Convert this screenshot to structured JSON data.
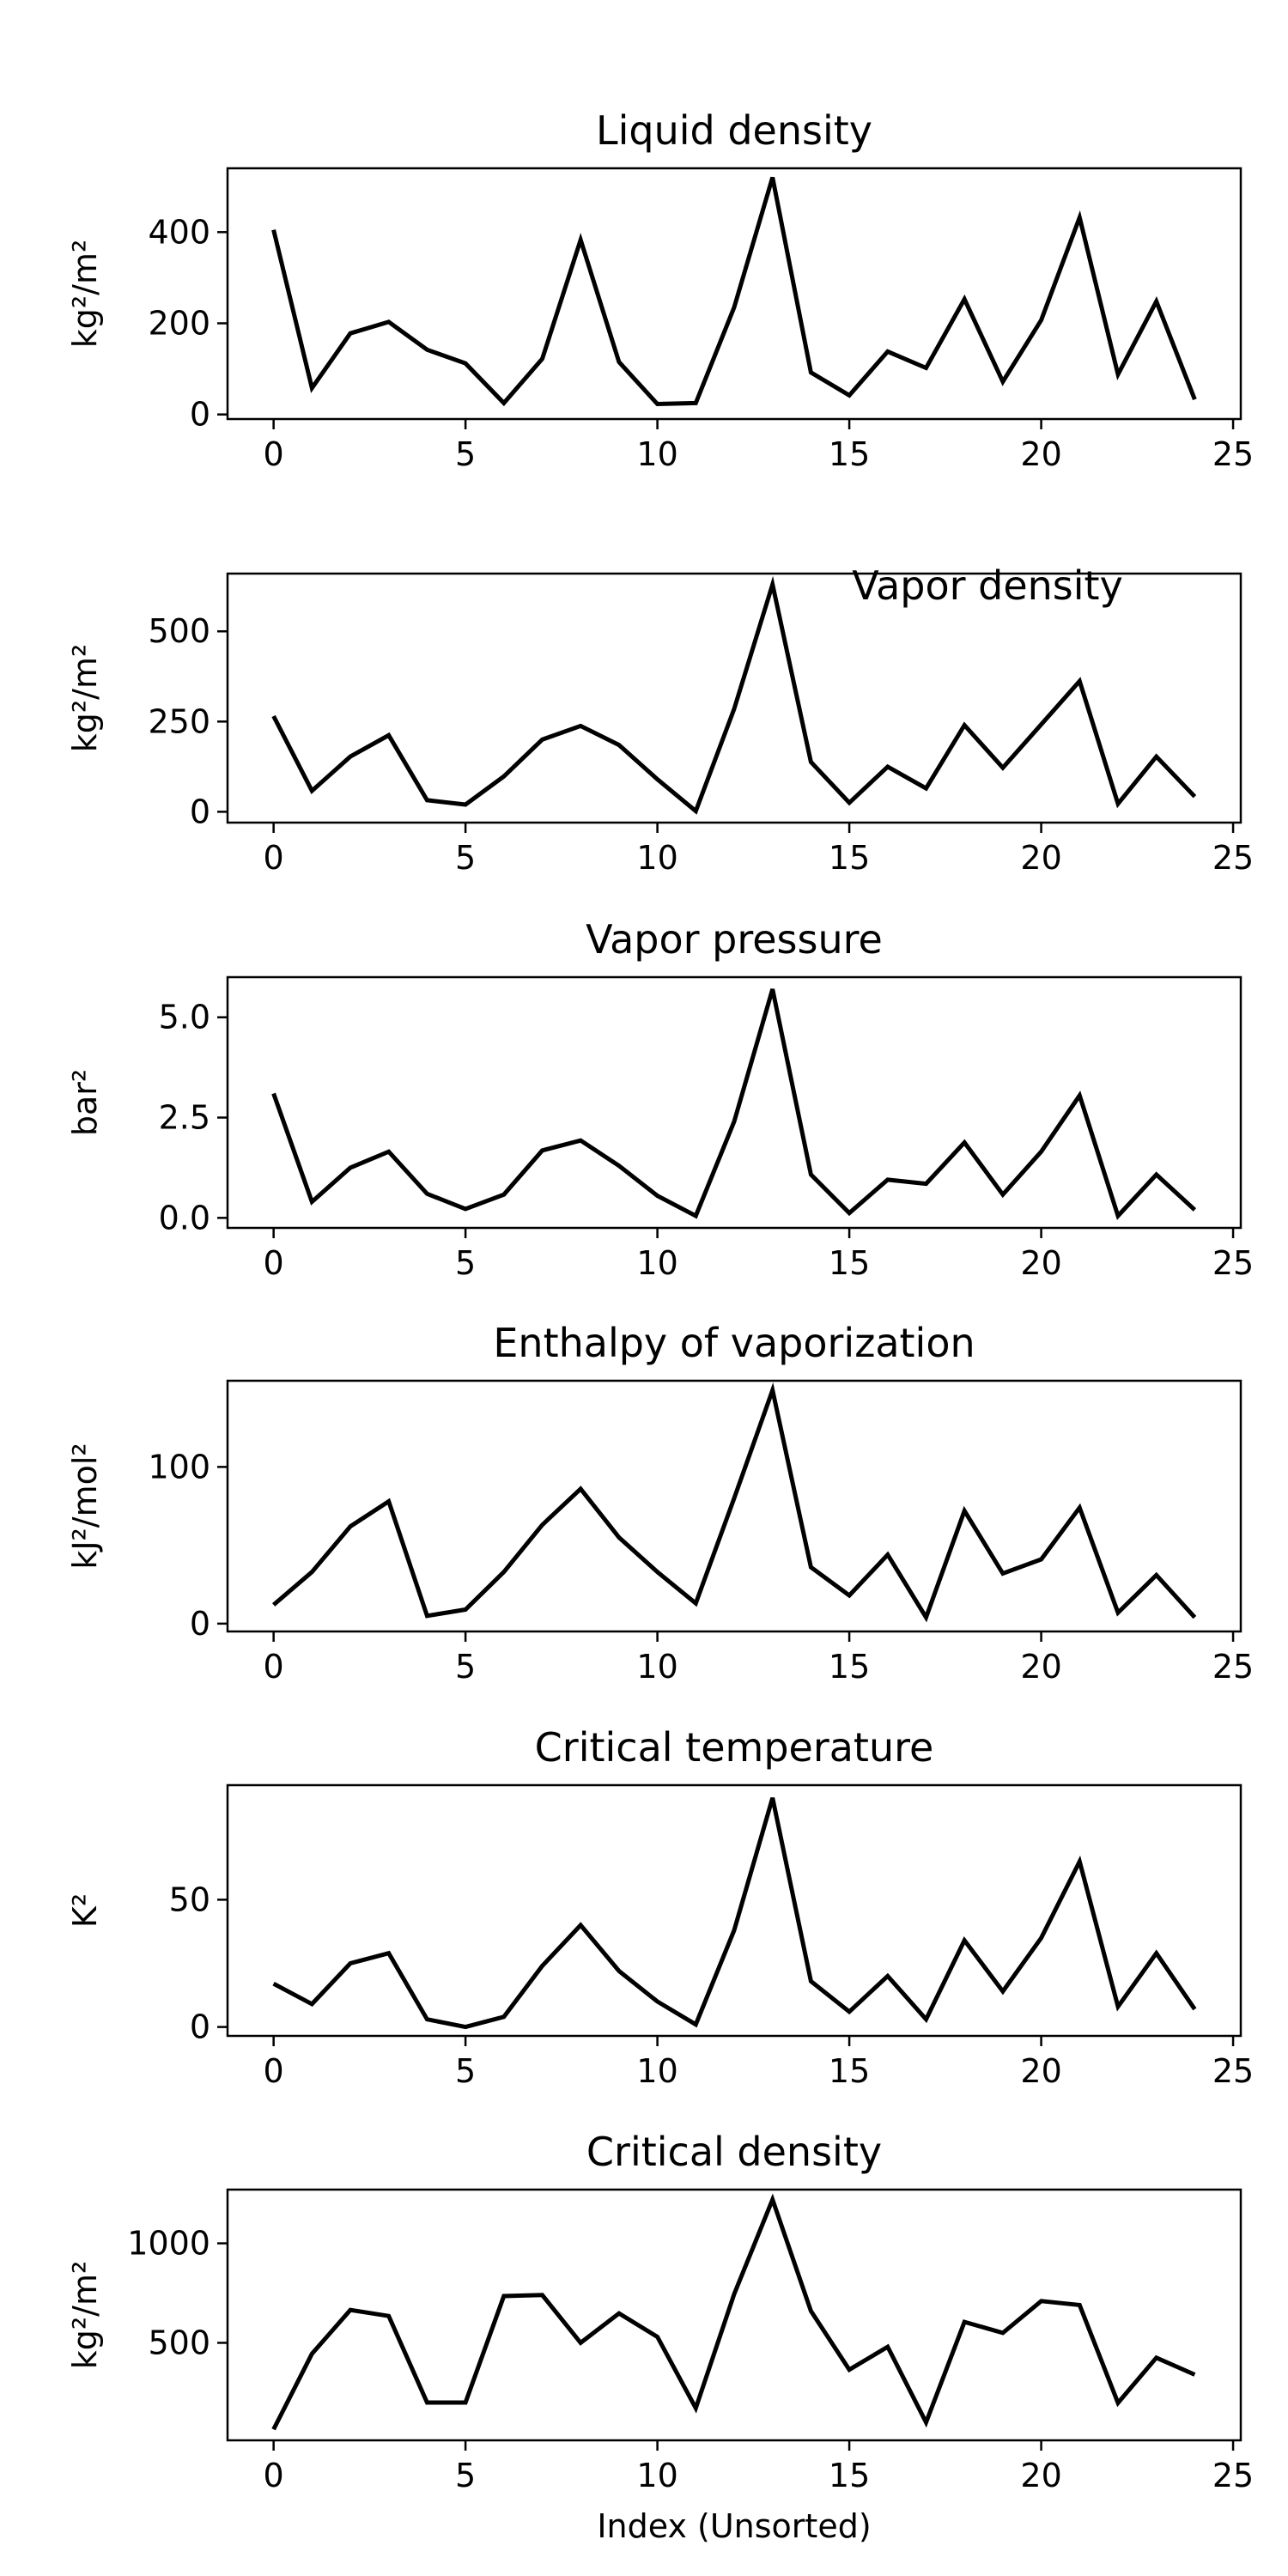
{
  "chart_data": [
    {
      "type": "line",
      "title": "Liquid density",
      "ylabel": "kg²/m²",
      "xlabel": "",
      "xlim": [
        -1.2,
        25.2
      ],
      "ylim": [
        -10,
        540
      ],
      "xticks": [
        0,
        5,
        10,
        15,
        20,
        25
      ],
      "yticks": [
        0,
        200,
        400
      ],
      "ytick_labels": [
        "0",
        "200",
        "400"
      ],
      "x": [
        0,
        1,
        2,
        3,
        4,
        5,
        6,
        7,
        8,
        9,
        10,
        11,
        12,
        13,
        14,
        15,
        16,
        17,
        18,
        19,
        20,
        21,
        22,
        23,
        24
      ],
      "values": [
        405,
        58,
        178,
        203,
        142,
        112,
        25,
        122,
        383,
        115,
        23,
        25,
        235,
        520,
        92,
        42,
        138,
        102,
        253,
        72,
        207,
        432,
        88,
        248,
        33
      ],
      "grid": false
    },
    {
      "type": "line",
      "title": "Vapor density",
      "ylabel": "kg²/m²",
      "xlabel": "",
      "xlim": [
        -1.2,
        25.2
      ],
      "ylim": [
        -30,
        660
      ],
      "xticks": [
        0,
        5,
        10,
        15,
        20,
        25
      ],
      "yticks": [
        0,
        250,
        500
      ],
      "ytick_labels": [
        "0",
        "250",
        "500"
      ],
      "x": [
        0,
        1,
        2,
        3,
        4,
        5,
        6,
        7,
        8,
        9,
        10,
        11,
        12,
        13,
        14,
        15,
        16,
        17,
        18,
        19,
        20,
        21,
        22,
        23,
        24
      ],
      "values": [
        265,
        58,
        153,
        212,
        32,
        20,
        98,
        200,
        238,
        185,
        90,
        2,
        285,
        630,
        138,
        25,
        125,
        65,
        240,
        122,
        242,
        362,
        22,
        153,
        42
      ],
      "grid": false
    },
    {
      "type": "line",
      "title": "Vapor pressure",
      "ylabel": "bar²",
      "xlabel": "",
      "xlim": [
        -1.2,
        25.2
      ],
      "ylim": [
        -0.25,
        6.0
      ],
      "xticks": [
        0,
        5,
        10,
        15,
        20,
        25
      ],
      "yticks": [
        0,
        2.5,
        5.0
      ],
      "ytick_labels": [
        "0.0",
        "2.5",
        "5.0"
      ],
      "x": [
        0,
        1,
        2,
        3,
        4,
        5,
        6,
        7,
        8,
        9,
        10,
        11,
        12,
        13,
        14,
        15,
        16,
        17,
        18,
        19,
        20,
        21,
        22,
        23,
        24
      ],
      "values": [
        3.1,
        0.4,
        1.25,
        1.65,
        0.6,
        0.22,
        0.58,
        1.68,
        1.93,
        1.3,
        0.55,
        0.05,
        2.4,
        5.7,
        1.08,
        0.12,
        0.95,
        0.85,
        1.88,
        0.58,
        1.65,
        3.05,
        0.05,
        1.08,
        0.2
      ],
      "grid": false
    },
    {
      "type": "line",
      "title": "Enthalpy of vaporization",
      "ylabel": "kJ²/mol²",
      "xlabel": "",
      "xlim": [
        -1.2,
        25.2
      ],
      "ylim": [
        -5,
        155
      ],
      "xticks": [
        0,
        5,
        10,
        15,
        20,
        25
      ],
      "yticks": [
        0,
        100
      ],
      "ytick_labels": [
        "0",
        "100"
      ],
      "x": [
        0,
        1,
        2,
        3,
        4,
        5,
        6,
        7,
        8,
        9,
        10,
        11,
        12,
        13,
        14,
        15,
        16,
        17,
        18,
        19,
        20,
        21,
        22,
        23,
        24
      ],
      "values": [
        12,
        33,
        62,
        78,
        5,
        9,
        33,
        63,
        86,
        55,
        33,
        13,
        80,
        149,
        36,
        18,
        44,
        4,
        72,
        32,
        41,
        74,
        7,
        31,
        4
      ],
      "grid": false
    },
    {
      "type": "line",
      "title": "Critical temperature",
      "ylabel": "K²",
      "xlabel": "",
      "xlim": [
        -1.2,
        25.2
      ],
      "ylim": [
        -3.5,
        95
      ],
      "xticks": [
        0,
        5,
        10,
        15,
        20,
        25
      ],
      "yticks": [
        0,
        50
      ],
      "ytick_labels": [
        "0",
        "50"
      ],
      "x": [
        0,
        1,
        2,
        3,
        4,
        5,
        6,
        7,
        8,
        9,
        10,
        11,
        12,
        13,
        14,
        15,
        16,
        17,
        18,
        19,
        20,
        21,
        22,
        23,
        24
      ],
      "values": [
        17,
        9,
        25,
        29,
        3,
        0,
        4,
        24,
        40,
        22,
        10,
        1,
        38,
        90,
        18,
        6,
        20,
        3,
        34,
        14,
        35,
        65,
        8,
        29,
        7
      ],
      "grid": false
    },
    {
      "type": "line",
      "title": "Critical density",
      "ylabel": "kg²/m²",
      "xlabel": "Index (Unsorted)",
      "xlim": [
        -1.2,
        25.2
      ],
      "ylim": [
        10,
        1270
      ],
      "xticks": [
        0,
        5,
        10,
        15,
        20,
        25
      ],
      "yticks": [
        500,
        1000
      ],
      "ytick_labels": [
        "500",
        "1000"
      ],
      "x": [
        0,
        1,
        2,
        3,
        4,
        5,
        6,
        7,
        8,
        9,
        10,
        11,
        12,
        13,
        14,
        15,
        16,
        17,
        18,
        19,
        20,
        21,
        22,
        23,
        24
      ],
      "values": [
        65,
        445,
        665,
        635,
        200,
        200,
        735,
        740,
        500,
        648,
        530,
        172,
        745,
        1220,
        660,
        365,
        480,
        100,
        605,
        550,
        710,
        690,
        198,
        425,
        340
      ],
      "grid": false
    }
  ]
}
